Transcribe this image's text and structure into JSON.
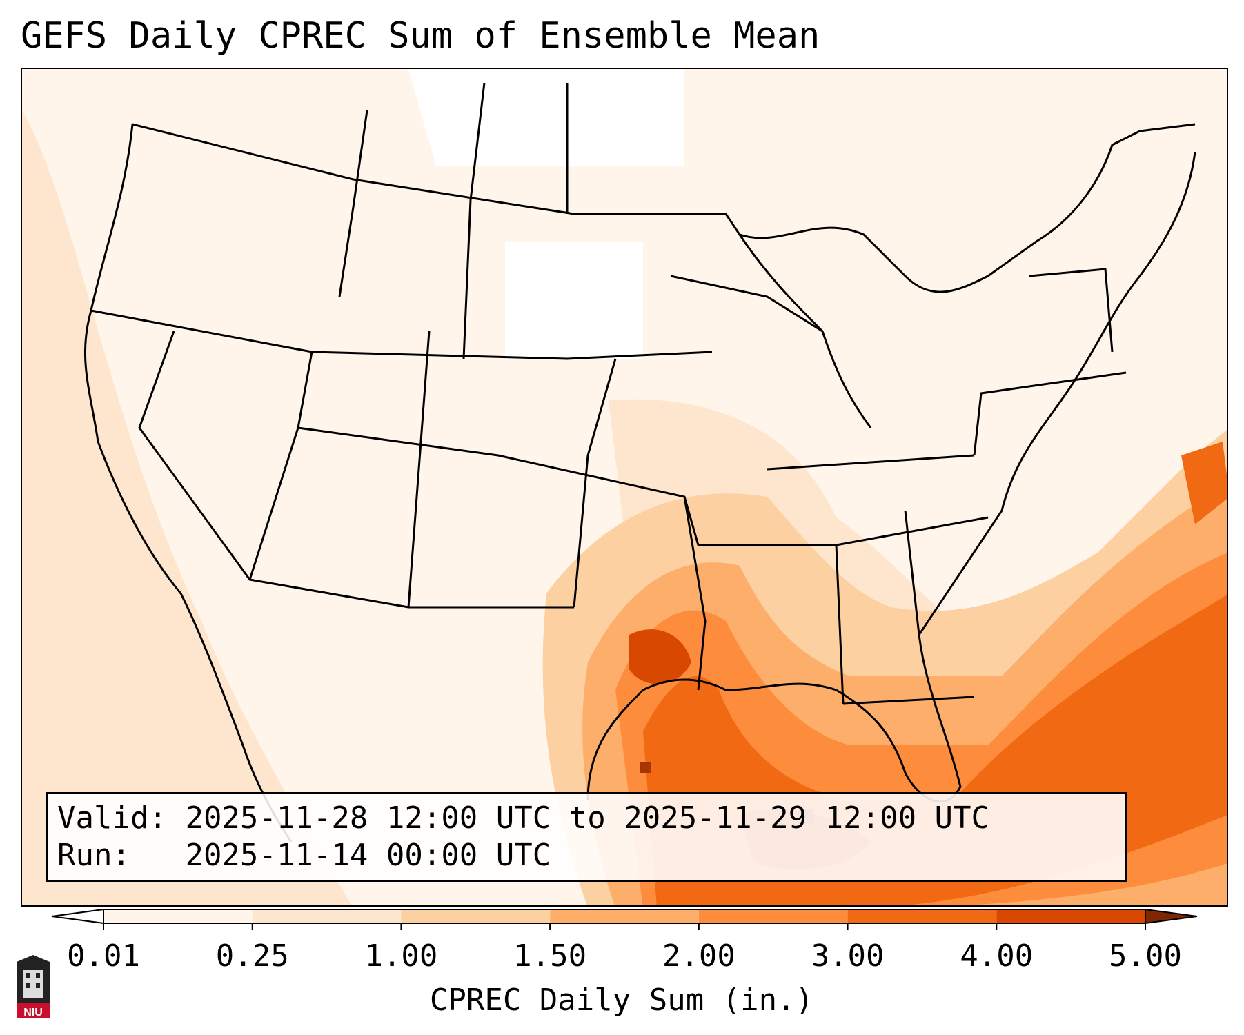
{
  "title": "GEFS Daily CPREC Sum of Ensemble Mean",
  "info": {
    "valid_label": "Valid:",
    "valid_value": "2025-11-28 12:00 UTC to 2025-11-29 12:00 UTC",
    "run_label": "Run:",
    "run_value": "2025-11-14 00:00 UTC"
  },
  "colorbar": {
    "label": "CPREC Daily Sum (in.)",
    "ticks": [
      "0.01",
      "0.25",
      "1.00",
      "1.50",
      "2.00",
      "3.00",
      "4.00",
      "5.00"
    ],
    "colors": [
      "#fff5eb",
      "#fee6ce",
      "#fdd0a2",
      "#fdae6b",
      "#fd8d3c",
      "#f16913",
      "#d94801",
      "#a63603"
    ],
    "under_color": "#ffffff",
    "over_color": "#7f2704"
  },
  "map": {
    "region": "Contiguous United States",
    "max_precip_region": "Gulf of Mexico / Texas-Louisiana coast"
  },
  "logo": {
    "text": "NIU"
  }
}
